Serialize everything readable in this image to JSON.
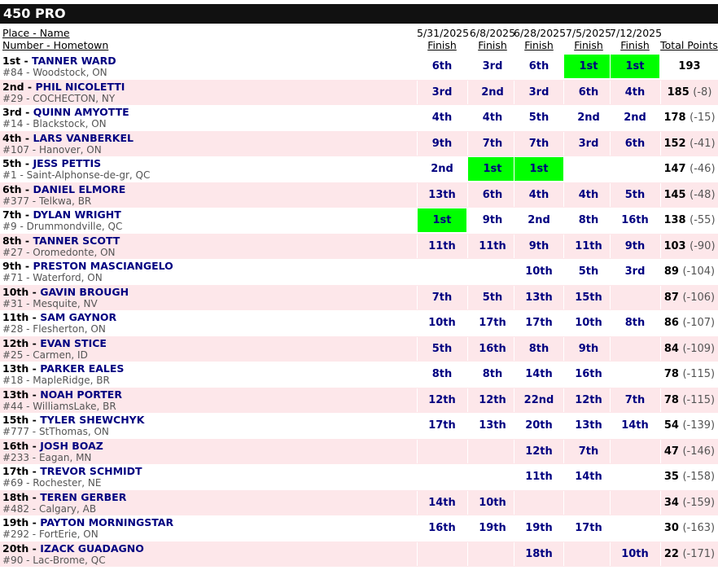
{
  "class_title": "450 PRO",
  "headers": {
    "place_name": "Place - Name",
    "number_hometown": "Number - Hometown",
    "finish_label": "Finish",
    "total_points": "Total Points",
    "dates": [
      "5/31/2025",
      "6/8/2025",
      "6/28/2025",
      "7/5/2025",
      "7/12/2025"
    ]
  },
  "riders": [
    {
      "place": "1st",
      "name": "TANNER WARD",
      "number": "#84",
      "hometown": "Woodstock, ON",
      "finishes": [
        "6th",
        "3rd",
        "6th",
        "1st",
        "1st"
      ],
      "points": "193",
      "gap": ""
    },
    {
      "place": "2nd",
      "name": "PHIL NICOLETTI",
      "number": "#29",
      "hometown": "COCHECTON, NY",
      "finishes": [
        "3rd",
        "2nd",
        "3rd",
        "6th",
        "4th"
      ],
      "points": "185",
      "gap": "(-8)"
    },
    {
      "place": "3rd",
      "name": "QUINN AMYOTTE",
      "number": "#14",
      "hometown": "Blackstock, ON",
      "finishes": [
        "4th",
        "4th",
        "5th",
        "2nd",
        "2nd"
      ],
      "points": "178",
      "gap": "(-15)"
    },
    {
      "place": "4th",
      "name": "LARS VANBERKEL",
      "number": "#107",
      "hometown": "Hanover, ON",
      "finishes": [
        "9th",
        "7th",
        "7th",
        "3rd",
        "6th"
      ],
      "points": "152",
      "gap": "(-41)"
    },
    {
      "place": "5th",
      "name": "JESS PETTIS",
      "number": "#1",
      "hometown": "Saint-Alphonse-de-gr, QC",
      "finishes": [
        "2nd",
        "1st",
        "1st",
        "",
        ""
      ],
      "points": "147",
      "gap": "(-46)"
    },
    {
      "place": "6th",
      "name": "DANIEL ELMORE",
      "number": "#377",
      "hometown": "Telkwa, BR",
      "finishes": [
        "13th",
        "6th",
        "4th",
        "4th",
        "5th"
      ],
      "points": "145",
      "gap": "(-48)"
    },
    {
      "place": "7th",
      "name": "DYLAN WRIGHT",
      "number": "#9",
      "hometown": "Drummondville, QC",
      "finishes": [
        "1st",
        "9th",
        "2nd",
        "8th",
        "16th"
      ],
      "points": "138",
      "gap": "(-55)"
    },
    {
      "place": "8th",
      "name": "TANNER SCOTT",
      "number": "#27",
      "hometown": "Oromedonte, ON",
      "finishes": [
        "11th",
        "11th",
        "9th",
        "11th",
        "9th"
      ],
      "points": "103",
      "gap": "(-90)"
    },
    {
      "place": "9th",
      "name": "PRESTON MASCIANGELO",
      "number": "#71",
      "hometown": "Waterford, ON",
      "finishes": [
        "",
        "",
        "10th",
        "5th",
        "3rd"
      ],
      "points": "89",
      "gap": "(-104)"
    },
    {
      "place": "10th",
      "name": "GAVIN BROUGH",
      "number": "#31",
      "hometown": "Mesquite, NV",
      "finishes": [
        "7th",
        "5th",
        "13th",
        "15th",
        ""
      ],
      "points": "87",
      "gap": "(-106)"
    },
    {
      "place": "11th",
      "name": "SAM GAYNOR",
      "number": "#28",
      "hometown": "Flesherton, ON",
      "finishes": [
        "10th",
        "17th",
        "17th",
        "10th",
        "8th"
      ],
      "points": "86",
      "gap": "(-107)"
    },
    {
      "place": "12th",
      "name": "EVAN STICE",
      "number": "#25",
      "hometown": "Carmen, ID",
      "finishes": [
        "5th",
        "16th",
        "8th",
        "9th",
        ""
      ],
      "points": "84",
      "gap": "(-109)"
    },
    {
      "place": "13th",
      "name": "PARKER EALES",
      "number": "#18",
      "hometown": "MapleRidge, BR",
      "finishes": [
        "8th",
        "8th",
        "14th",
        "16th",
        ""
      ],
      "points": "78",
      "gap": "(-115)"
    },
    {
      "place": "13th",
      "name": "NOAH PORTER",
      "number": "#44",
      "hometown": "WilliamsLake, BR",
      "finishes": [
        "12th",
        "12th",
        "22nd",
        "12th",
        "7th"
      ],
      "points": "78",
      "gap": "(-115)"
    },
    {
      "place": "15th",
      "name": "TYLER SHEWCHYK",
      "number": "#777",
      "hometown": "StThomas, ON",
      "finishes": [
        "17th",
        "13th",
        "20th",
        "13th",
        "14th"
      ],
      "points": "54",
      "gap": "(-139)"
    },
    {
      "place": "16th",
      "name": "JOSH BOAZ",
      "number": "#233",
      "hometown": "Eagan, MN",
      "finishes": [
        "",
        "",
        "12th",
        "7th",
        ""
      ],
      "points": "47",
      "gap": "(-146)"
    },
    {
      "place": "17th",
      "name": "TREVOR SCHMIDT",
      "number": "#69",
      "hometown": "Rochester, NE",
      "finishes": [
        "",
        "",
        "11th",
        "14th",
        ""
      ],
      "points": "35",
      "gap": "(-158)"
    },
    {
      "place": "18th",
      "name": "TEREN GERBER",
      "number": "#482",
      "hometown": "Calgary, AB",
      "finishes": [
        "14th",
        "10th",
        "",
        "",
        ""
      ],
      "points": "34",
      "gap": "(-159)"
    },
    {
      "place": "19th",
      "name": "PAYTON MORNINGSTAR",
      "number": "#292",
      "hometown": "FortErie, ON",
      "finishes": [
        "16th",
        "19th",
        "19th",
        "17th",
        ""
      ],
      "points": "30",
      "gap": "(-163)"
    },
    {
      "place": "20th",
      "name": "IZACK GUADAGNO",
      "number": "#90",
      "hometown": "Lac-Brome, QC",
      "finishes": [
        "",
        "",
        "18th",
        "",
        "10th"
      ],
      "points": "22",
      "gap": "(-171)"
    }
  ],
  "colors": {
    "win_highlight": "#00ff00",
    "alt_row": "#fde7ea",
    "name_color": "#000080"
  }
}
